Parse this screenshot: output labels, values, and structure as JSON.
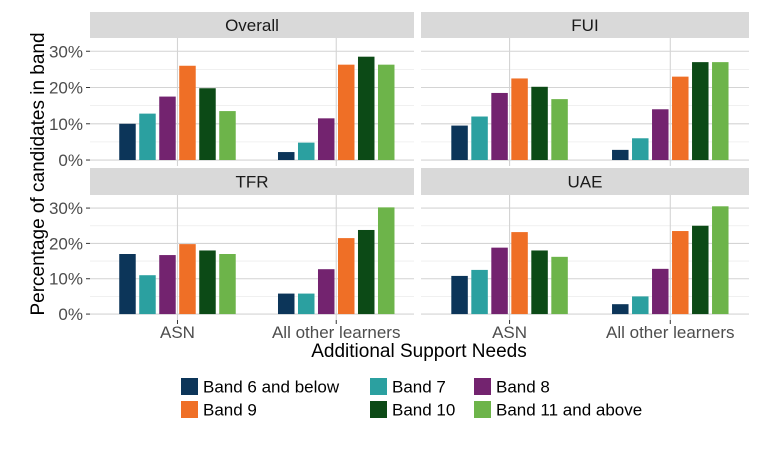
{
  "chart_data": {
    "type": "bar",
    "facet_layout": "2x2",
    "ylabel": "Percentage of candidates in band",
    "xlabel": "Additional Support Needs",
    "categories": [
      "ASN",
      "All other learners"
    ],
    "y_ticks": [
      "0%",
      "10%",
      "20%",
      "30%"
    ],
    "ylim": [
      0,
      32
    ],
    "grid": true,
    "legend_position": "bottom",
    "series_meta": [
      {
        "name": "Band 6 and below",
        "color": "#0c3559"
      },
      {
        "name": "Band 7",
        "color": "#2ba0a0"
      },
      {
        "name": "Band 8",
        "color": "#73236f"
      },
      {
        "name": "Band 9",
        "color": "#ef6f26"
      },
      {
        "name": "Band 10",
        "color": "#0c4a16"
      },
      {
        "name": "Band 11 and above",
        "color": "#6db44a"
      }
    ],
    "panels": [
      {
        "title": "Overall",
        "series": [
          {
            "name": "Band 6 and below",
            "values": [
              10,
              2.2
            ]
          },
          {
            "name": "Band 7",
            "values": [
              12.8,
              4.8
            ]
          },
          {
            "name": "Band 8",
            "values": [
              17.5,
              11.5
            ]
          },
          {
            "name": "Band 9",
            "values": [
              26,
              26.3
            ]
          },
          {
            "name": "Band 10",
            "values": [
              19.8,
              28.5
            ]
          },
          {
            "name": "Band 11 and above",
            "values": [
              13.5,
              26.3
            ]
          }
        ]
      },
      {
        "title": "FUI",
        "series": [
          {
            "name": "Band 6 and below",
            "values": [
              9.5,
              2.8
            ]
          },
          {
            "name": "Band 7",
            "values": [
              12,
              6
            ]
          },
          {
            "name": "Band 8",
            "values": [
              18.5,
              14
            ]
          },
          {
            "name": "Band 9",
            "values": [
              22.5,
              23
            ]
          },
          {
            "name": "Band 10",
            "values": [
              20.2,
              27
            ]
          },
          {
            "name": "Band 11 and above",
            "values": [
              16.8,
              27
            ]
          }
        ]
      },
      {
        "title": "TFR",
        "series": [
          {
            "name": "Band 6 and below",
            "values": [
              17,
              5.8
            ]
          },
          {
            "name": "Band 7",
            "values": [
              11,
              5.8
            ]
          },
          {
            "name": "Band 8",
            "values": [
              16.7,
              12.7
            ]
          },
          {
            "name": "Band 9",
            "values": [
              19.8,
              21.5
            ]
          },
          {
            "name": "Band 10",
            "values": [
              18,
              23.8
            ]
          },
          {
            "name": "Band 11 and above",
            "values": [
              17,
              30.2
            ]
          }
        ]
      },
      {
        "title": "UAE",
        "series": [
          {
            "name": "Band 6 and below",
            "values": [
              10.8,
              2.8
            ]
          },
          {
            "name": "Band 7",
            "values": [
              12.5,
              5
            ]
          },
          {
            "name": "Band 8",
            "values": [
              18.8,
              12.8
            ]
          },
          {
            "name": "Band 9",
            "values": [
              23.2,
              23.5
            ]
          },
          {
            "name": "Band 10",
            "values": [
              18,
              25
            ]
          },
          {
            "name": "Band 11 and above",
            "values": [
              16.2,
              30.5
            ]
          }
        ]
      }
    ]
  }
}
